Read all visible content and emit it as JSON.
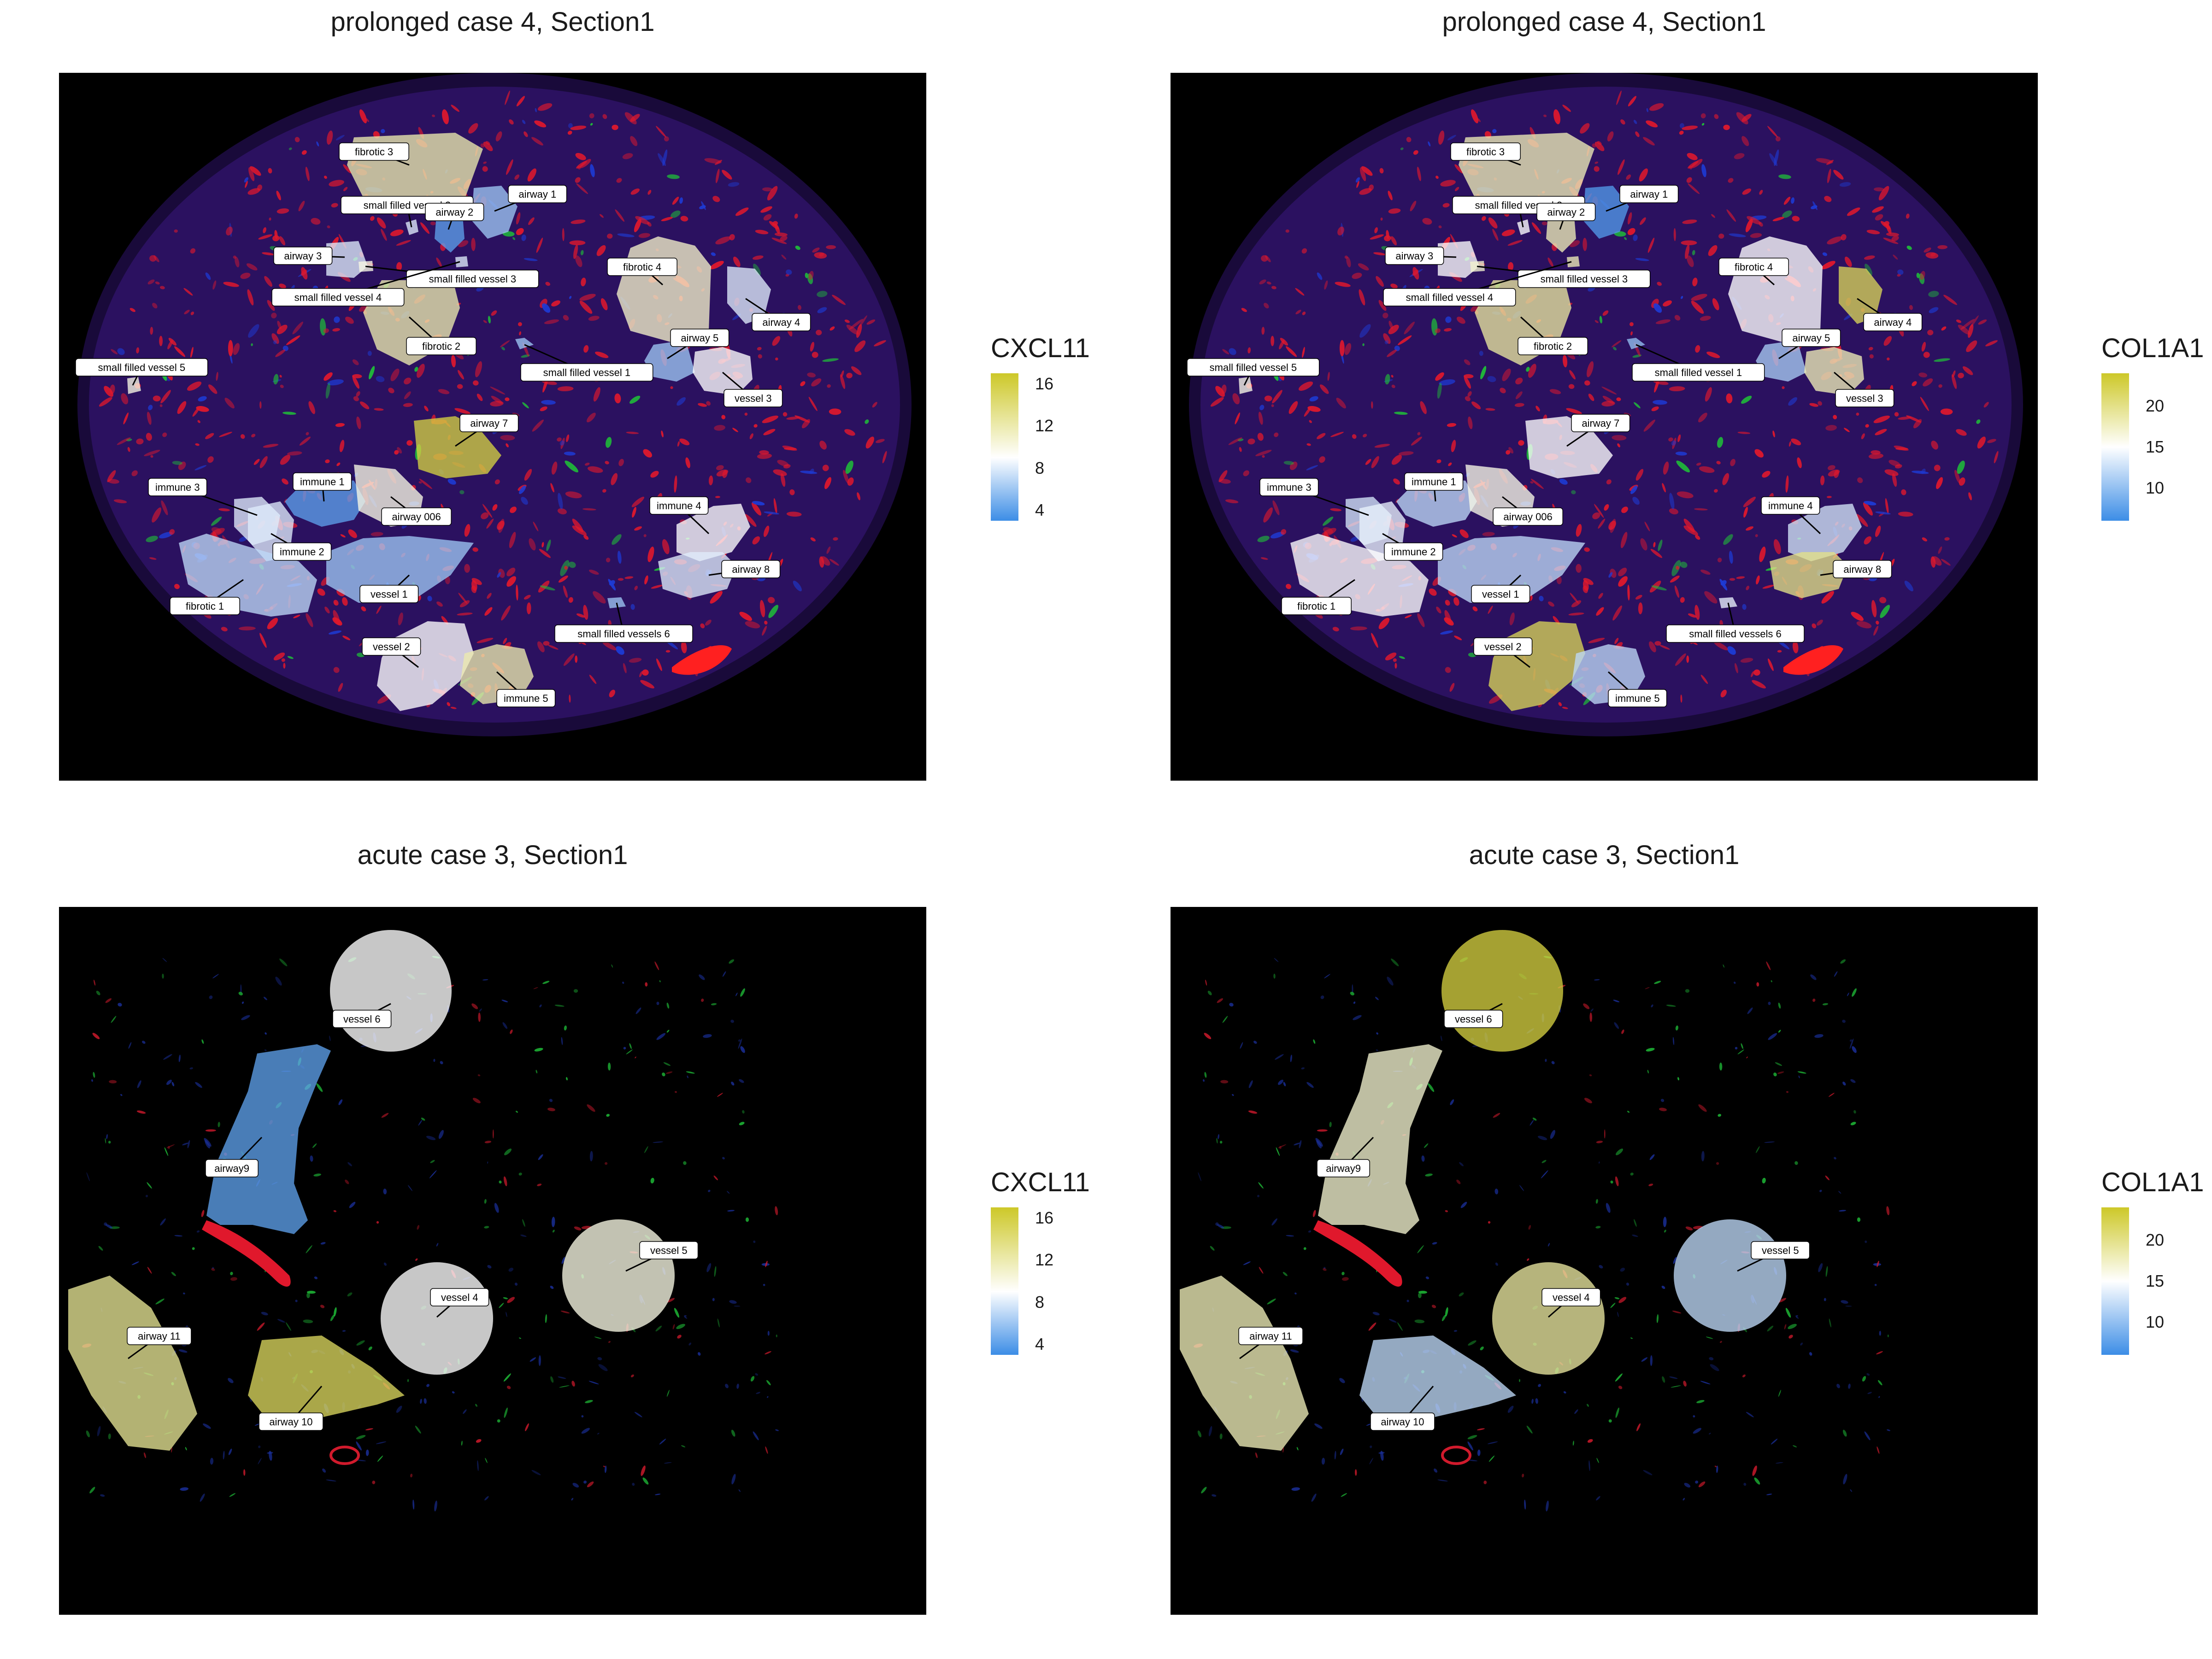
{
  "panels": [
    {
      "title": "prolonged case 4, Section1",
      "marker": "CXCL11",
      "legend_ticks": [
        "4",
        "8",
        "12",
        "16"
      ],
      "regions": [
        {
          "label": "fibrotic 3",
          "level": 12
        },
        {
          "label": "small filled vessel 2",
          "level": 8
        },
        {
          "label": "airway 2",
          "level": 4
        },
        {
          "label": "airway 1",
          "level": 6
        },
        {
          "label": "airway 3",
          "level": 8
        },
        {
          "label": "fibrotic 4",
          "level": 11
        },
        {
          "label": "small filled vessel 3",
          "level": 10
        },
        {
          "label": "small filled vessel 4",
          "level": 8
        },
        {
          "label": "airway 4",
          "level": 8
        },
        {
          "label": "fibrotic 2",
          "level": 12
        },
        {
          "label": "airway 5",
          "level": 6
        },
        {
          "label": "small filled vessel 5",
          "level": 10
        },
        {
          "label": "small filled vessel 1",
          "level": 6
        },
        {
          "label": "vessel 3",
          "level": 9
        },
        {
          "label": "airway 7",
          "level": 16
        },
        {
          "label": "immune 1",
          "level": 4
        },
        {
          "label": "immune 3",
          "level": 8
        },
        {
          "label": "airway 006",
          "level": 10
        },
        {
          "label": "immune 4",
          "level": 9
        },
        {
          "label": "immune 2",
          "level": 8
        },
        {
          "label": "airway 8",
          "level": 8
        },
        {
          "label": "vessel 1",
          "level": 6
        },
        {
          "label": "fibrotic 1",
          "level": 7
        },
        {
          "label": "small filled vessels 6",
          "level": 6
        },
        {
          "label": "vessel 2",
          "level": 9
        },
        {
          "label": "immune 5",
          "level": 12
        }
      ]
    },
    {
      "title": "prolonged case 4, Section1",
      "marker": "COL1A1",
      "legend_ticks": [
        "10",
        "15",
        "20"
      ],
      "regions": [
        {
          "label": "fibrotic 3",
          "level": 18
        },
        {
          "label": "small filled vessel 2",
          "level": 15
        },
        {
          "label": "airway 2",
          "level": 18
        },
        {
          "label": "airway 1",
          "level": 7
        },
        {
          "label": "airway 3",
          "level": 15
        },
        {
          "label": "fibrotic 4",
          "level": 15
        },
        {
          "label": "small filled vessel 3",
          "level": 17
        },
        {
          "label": "small filled vessel 4",
          "level": 18
        },
        {
          "label": "airway 4",
          "level": 22
        },
        {
          "label": "fibrotic 2",
          "level": 19
        },
        {
          "label": "airway 5",
          "level": 11
        },
        {
          "label": "small filled vessel 5",
          "level": 16
        },
        {
          "label": "small filled vessel 1",
          "level": 10
        },
        {
          "label": "vessel 3",
          "level": 18
        },
        {
          "label": "airway 7",
          "level": 15
        },
        {
          "label": "immune 1",
          "level": 12
        },
        {
          "label": "immune 3",
          "level": 13
        },
        {
          "label": "airway 006",
          "level": 16
        },
        {
          "label": "immune 4",
          "level": 13
        },
        {
          "label": "immune 2",
          "level": 14
        },
        {
          "label": "airway 8",
          "level": 20
        },
        {
          "label": "vessel 1",
          "level": 12
        },
        {
          "label": "fibrotic 1",
          "level": 15
        },
        {
          "label": "small filled vessels 6",
          "level": 14
        },
        {
          "label": "vessel 2",
          "level": 22
        },
        {
          "label": "immune 5",
          "level": 12
        }
      ]
    },
    {
      "title": "acute case 3, Section1",
      "marker": "CXCL11",
      "legend_ticks": [
        "4",
        "8",
        "12",
        "16"
      ],
      "regions": [
        {
          "label": "vessel 6",
          "level": 9
        },
        {
          "label": "airway9",
          "level": 4
        },
        {
          "label": "vessel 5",
          "level": 10
        },
        {
          "label": "vessel 4",
          "level": 9
        },
        {
          "label": "airway 11",
          "level": 13
        },
        {
          "label": "airway 10",
          "level": 15
        }
      ]
    },
    {
      "title": "acute case 3, Section1",
      "marker": "COL1A1",
      "legend_ticks": [
        "10",
        "15",
        "20"
      ],
      "regions": [
        {
          "label": "vessel 6",
          "level": 23
        },
        {
          "label": "airway9",
          "level": 17
        },
        {
          "label": "vessel 5",
          "level": 12
        },
        {
          "label": "vessel 4",
          "level": 19
        },
        {
          "label": "airway 11",
          "level": 18
        },
        {
          "label": "airway 10",
          "level": 12
        }
      ]
    }
  ],
  "scales": {
    "CXCL11": {
      "min": 3,
      "max": 17,
      "mid": 9
    },
    "COL1A1": {
      "min": 6,
      "max": 24,
      "mid": 15
    }
  },
  "colors": {
    "low": "#3c8de6",
    "mid": "#ffffff",
    "high": "#cdc828"
  }
}
